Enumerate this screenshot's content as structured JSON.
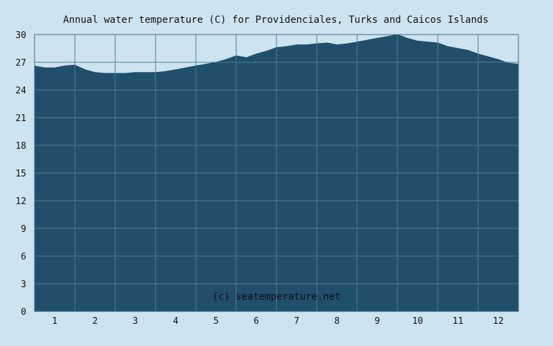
{
  "chart_data": {
    "type": "area",
    "title": "Annual water temperature (C) for Providenciales, Turks and Caicos Islands",
    "xlabel": "",
    "ylabel": "",
    "x_tick_labels": [
      "1",
      "2",
      "3",
      "4",
      "5",
      "6",
      "7",
      "8",
      "9",
      "10",
      "11",
      "12"
    ],
    "y_tick_labels": [
      "0",
      "3",
      "6",
      "9",
      "12",
      "15",
      "18",
      "21",
      "24",
      "27",
      "30"
    ],
    "ylim": [
      0,
      30
    ],
    "xlim": [
      0.5,
      12.5
    ],
    "grid": true,
    "credit": "(c) seatemperature.net",
    "colors": {
      "background": "#cde3ef",
      "fill": "#1f4f6b",
      "grid": "#4d7c96",
      "border": "#3a6a85"
    },
    "series": [
      {
        "x": [
          0.5,
          0.75,
          1.0,
          1.25,
          1.5,
          1.75,
          2.0,
          2.25,
          2.5,
          2.75,
          3.0,
          3.25,
          3.5,
          3.75,
          4.0,
          4.25,
          4.5,
          4.75,
          5.0,
          5.25,
          5.5,
          5.75,
          6.0,
          6.25,
          6.5,
          6.75,
          7.0,
          7.25,
          7.5,
          7.75,
          8.0,
          8.25,
          8.5,
          8.75,
          9.0,
          9.25,
          9.5,
          9.75,
          10.0,
          10.25,
          10.5,
          10.75,
          11.0,
          11.25,
          11.5,
          11.75,
          12.0,
          12.25,
          12.5
        ],
        "values": [
          26.6,
          26.4,
          26.4,
          26.6,
          26.7,
          26.2,
          25.9,
          25.8,
          25.8,
          25.8,
          25.9,
          25.9,
          25.9,
          26.0,
          26.2,
          26.4,
          26.6,
          26.8,
          27.0,
          27.3,
          27.7,
          27.5,
          27.9,
          28.2,
          28.6,
          28.7,
          28.9,
          28.9,
          29.0,
          29.1,
          28.9,
          29.0,
          29.2,
          29.4,
          29.6,
          29.8,
          30.0,
          29.6,
          29.3,
          29.2,
          29.1,
          28.7,
          28.5,
          28.3,
          27.9,
          27.6,
          27.3,
          26.9,
          26.8
        ]
      }
    ]
  }
}
